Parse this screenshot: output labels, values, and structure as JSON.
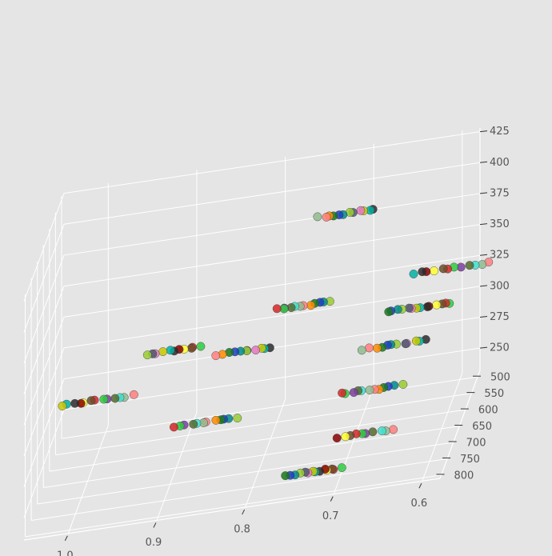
{
  "chart_data": {
    "type": "scatter",
    "projection": "3d",
    "title": "",
    "xlabel": "",
    "ylabel": "",
    "zlabel": "",
    "grid": true,
    "legend": "none",
    "background_color": "#e5e5e5",
    "grid_color": "#ffffff",
    "xlim": [
      0.58,
      1.05
    ],
    "ylim": [
      480,
      810
    ],
    "zlim": [
      232,
      428
    ],
    "x_ticks": [
      {
        "value": 1.0,
        "label": "1.0"
      },
      {
        "value": 0.9,
        "label": "0.9"
      },
      {
        "value": 0.8,
        "label": "0.8"
      },
      {
        "value": 0.7,
        "label": "0.7"
      },
      {
        "value": 0.6,
        "label": "0.6"
      }
    ],
    "y_ticks": [
      {
        "value": 500,
        "label": "500"
      },
      {
        "value": 550,
        "label": "550"
      },
      {
        "value": 600,
        "label": "600"
      },
      {
        "value": 650,
        "label": "650"
      },
      {
        "value": 700,
        "label": "700"
      },
      {
        "value": 750,
        "label": "750"
      },
      {
        "value": 800,
        "label": "800"
      }
    ],
    "z_ticks": [
      {
        "value": 250,
        "label": "250"
      },
      {
        "value": 275,
        "label": "275"
      },
      {
        "value": 300,
        "label": "300"
      },
      {
        "value": 325,
        "label": "325"
      },
      {
        "value": 350,
        "label": "350"
      },
      {
        "value": 375,
        "label": "375"
      },
      {
        "value": 400,
        "label": "400"
      },
      {
        "value": 425,
        "label": "425"
      }
    ],
    "palette": [
      "#2b2b2b",
      "#1f3fbf",
      "#7b3fa0",
      "#00b3a4",
      "#1a7a1a",
      "#2ecc40",
      "#c8c800",
      "#ff8c00",
      "#d62728",
      "#e377c2",
      "#ff7f7f",
      "#6b4f2a",
      "#4b5a6b",
      "#8fbc8f",
      "#ffff33",
      "#9acd32",
      "#40e0d0",
      "#8b0000",
      "#008b8b",
      "#556b2f"
    ],
    "groups": [
      {
        "x": 0.72,
        "y": 560,
        "z": 395,
        "n": 12,
        "spread": 0.06
      },
      {
        "x": 0.73,
        "y": 760,
        "z": 240,
        "n": 14,
        "spread": 0.06
      },
      {
        "x": 0.68,
        "y": 700,
        "z": 250,
        "n": 10,
        "spread": 0.06
      },
      {
        "x": 0.68,
        "y": 650,
        "z": 272,
        "n": 12,
        "spread": 0.07
      },
      {
        "x": 0.66,
        "y": 600,
        "z": 293,
        "n": 12,
        "spread": 0.07
      },
      {
        "x": 0.64,
        "y": 550,
        "z": 308,
        "n": 14,
        "spread": 0.07
      },
      {
        "x": 0.61,
        "y": 500,
        "z": 323,
        "n": 12,
        "spread": 0.08
      },
      {
        "x": 0.77,
        "y": 550,
        "z": 323,
        "n": 12,
        "spread": 0.06
      },
      {
        "x": 0.83,
        "y": 600,
        "z": 306,
        "n": 11,
        "spread": 0.06
      },
      {
        "x": 0.91,
        "y": 600,
        "z": 315,
        "n": 11,
        "spread": 0.06
      },
      {
        "x": 0.99,
        "y": 650,
        "z": 296,
        "n": 13,
        "spread": 0.08
      },
      {
        "x": 0.86,
        "y": 700,
        "z": 278,
        "n": 12,
        "spread": 0.07
      }
    ]
  }
}
